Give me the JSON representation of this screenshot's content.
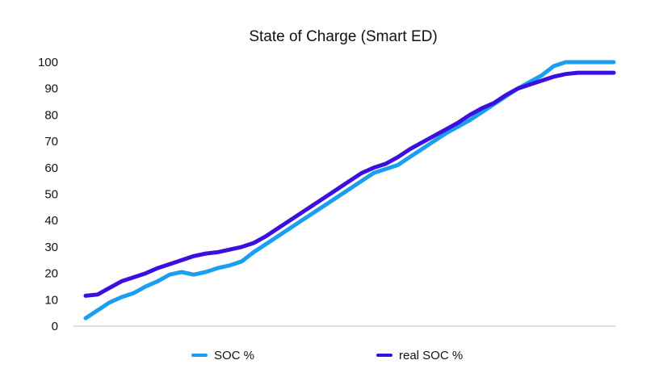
{
  "chart_data": {
    "type": "line",
    "title": "State of Charge (Smart ED)",
    "xlabel": "",
    "ylabel": "",
    "ylim": [
      0,
      100
    ],
    "yticks": [
      "0",
      "10",
      "20",
      "30",
      "40",
      "50",
      "60",
      "70",
      "80",
      "90",
      "100"
    ],
    "grid": false,
    "legend_position": "bottom",
    "series": [
      {
        "name": "SOC %",
        "color": "#1a9ef0",
        "values": [
          3,
          6,
          9,
          11,
          12.5,
          15,
          17,
          19.5,
          20.5,
          19.5,
          20.5,
          22,
          23,
          24.5,
          28,
          31,
          34,
          37,
          40,
          43,
          46,
          49,
          52,
          55,
          58,
          59.5,
          61,
          64,
          67,
          70,
          73,
          75.5,
          78,
          81,
          84,
          87,
          90,
          92.5,
          95,
          98.5,
          100,
          100,
          100,
          100,
          100
        ]
      },
      {
        "name": "real SOC %",
        "color": "#3b0fe0",
        "values": [
          11.5,
          12,
          14.5,
          17,
          18.5,
          20,
          22,
          23.5,
          25,
          26.5,
          27.5,
          28,
          29,
          30,
          31.5,
          34,
          37,
          40,
          43,
          46,
          49,
          52,
          55,
          58,
          60,
          61.5,
          64,
          67,
          69.5,
          72,
          74.5,
          77,
          80,
          82.5,
          84.5,
          87.5,
          90,
          91.5,
          93,
          94.5,
          95.5,
          96,
          96,
          96,
          96
        ]
      }
    ]
  }
}
